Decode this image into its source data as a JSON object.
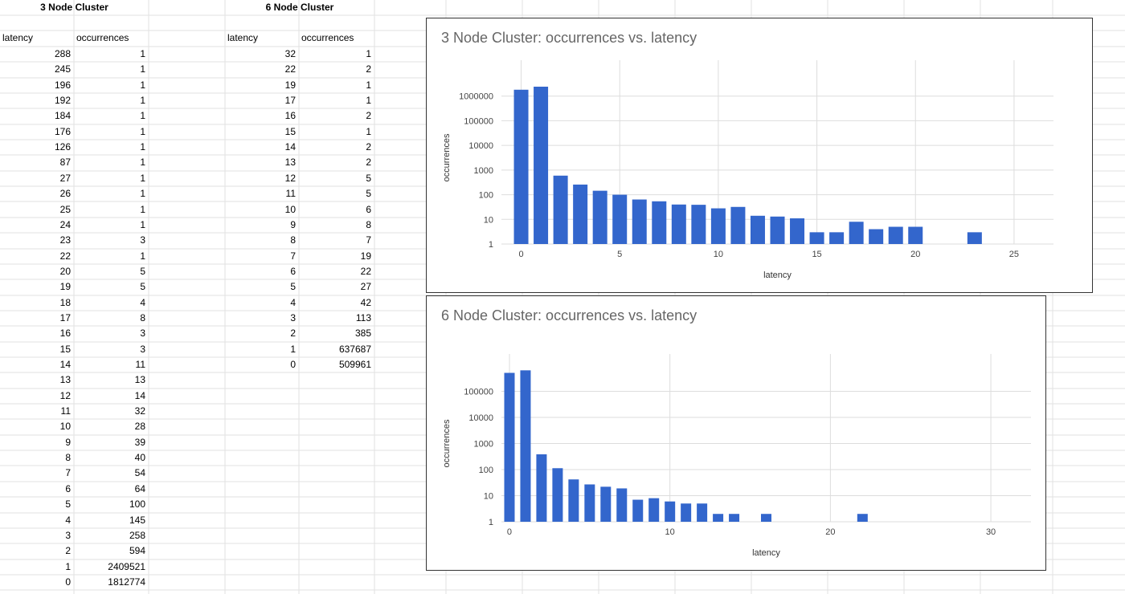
{
  "sheet": {
    "three_node": {
      "title": "3 Node Cluster",
      "col_latency": "latency",
      "col_occurrences": "occurrences",
      "rows": [
        [
          "288",
          "1"
        ],
        [
          "245",
          "1"
        ],
        [
          "196",
          "1"
        ],
        [
          "192",
          "1"
        ],
        [
          "184",
          "1"
        ],
        [
          "176",
          "1"
        ],
        [
          "126",
          "1"
        ],
        [
          "87",
          "1"
        ],
        [
          "27",
          "1"
        ],
        [
          "26",
          "1"
        ],
        [
          "25",
          "1"
        ],
        [
          "24",
          "1"
        ],
        [
          "23",
          "3"
        ],
        [
          "22",
          "1"
        ],
        [
          "20",
          "5"
        ],
        [
          "19",
          "5"
        ],
        [
          "18",
          "4"
        ],
        [
          "17",
          "8"
        ],
        [
          "16",
          "3"
        ],
        [
          "15",
          "3"
        ],
        [
          "14",
          "11"
        ],
        [
          "13",
          "13"
        ],
        [
          "12",
          "14"
        ],
        [
          "11",
          "32"
        ],
        [
          "10",
          "28"
        ],
        [
          "9",
          "39"
        ],
        [
          "8",
          "40"
        ],
        [
          "7",
          "54"
        ],
        [
          "6",
          "64"
        ],
        [
          "5",
          "100"
        ],
        [
          "4",
          "145"
        ],
        [
          "3",
          "258"
        ],
        [
          "2",
          "594"
        ],
        [
          "1",
          "2409521"
        ],
        [
          "0",
          "1812774"
        ]
      ]
    },
    "six_node": {
      "title": "6 Node Cluster",
      "col_latency": "latency",
      "col_occurrences": "occurrences",
      "rows": [
        [
          "32",
          "1"
        ],
        [
          "22",
          "2"
        ],
        [
          "19",
          "1"
        ],
        [
          "17",
          "1"
        ],
        [
          "16",
          "2"
        ],
        [
          "15",
          "1"
        ],
        [
          "14",
          "2"
        ],
        [
          "13",
          "2"
        ],
        [
          "12",
          "5"
        ],
        [
          "11",
          "5"
        ],
        [
          "10",
          "6"
        ],
        [
          "9",
          "8"
        ],
        [
          "8",
          "7"
        ],
        [
          "7",
          "19"
        ],
        [
          "6",
          "22"
        ],
        [
          "5",
          "27"
        ],
        [
          "4",
          "42"
        ],
        [
          "3",
          "113"
        ],
        [
          "2",
          "385"
        ],
        [
          "1",
          "637687"
        ],
        [
          "0",
          "509961"
        ]
      ]
    }
  },
  "colors": {
    "bar": "#3366cc",
    "grid": "#dddddd",
    "title": "#666666"
  },
  "chart_data": [
    {
      "type": "bar",
      "title": "3 Node Cluster: occurrences vs. latency",
      "xlabel": "latency",
      "ylabel": "occurrences",
      "yscale": "log",
      "ylim": [
        1,
        10000000
      ],
      "xlim": [
        -1,
        27
      ],
      "xticks": [
        0,
        5,
        10,
        15,
        20,
        25
      ],
      "yticks": [
        1,
        10,
        100,
        1000,
        10000,
        100000,
        1000000
      ],
      "ytick_labels": [
        "1",
        "10",
        "100",
        "1000",
        "10000",
        "100000",
        "1000000"
      ],
      "points": [
        {
          "x": 0,
          "y": 1812774
        },
        {
          "x": 1,
          "y": 2409521
        },
        {
          "x": 2,
          "y": 594
        },
        {
          "x": 3,
          "y": 258
        },
        {
          "x": 4,
          "y": 145
        },
        {
          "x": 5,
          "y": 100
        },
        {
          "x": 6,
          "y": 64
        },
        {
          "x": 7,
          "y": 54
        },
        {
          "x": 8,
          "y": 40
        },
        {
          "x": 9,
          "y": 39
        },
        {
          "x": 10,
          "y": 28
        },
        {
          "x": 11,
          "y": 32
        },
        {
          "x": 12,
          "y": 14
        },
        {
          "x": 13,
          "y": 13
        },
        {
          "x": 14,
          "y": 11
        },
        {
          "x": 15,
          "y": 3
        },
        {
          "x": 16,
          "y": 3
        },
        {
          "x": 17,
          "y": 8
        },
        {
          "x": 18,
          "y": 4
        },
        {
          "x": 19,
          "y": 5
        },
        {
          "x": 20,
          "y": 5
        },
        {
          "x": 23,
          "y": 3
        }
      ]
    },
    {
      "type": "bar",
      "title": "6 Node Cluster: occurrences vs. latency",
      "xlabel": "latency",
      "ylabel": "occurrences",
      "yscale": "log",
      "ylim": [
        1,
        1000000
      ],
      "xlim": [
        -0.5,
        32.5
      ],
      "xticks": [
        0,
        10,
        20,
        30
      ],
      "yticks": [
        1,
        10,
        100,
        1000,
        10000,
        100000
      ],
      "ytick_labels": [
        "1",
        "10",
        "100",
        "1000",
        "10000",
        "100000"
      ],
      "points": [
        {
          "x": 0,
          "y": 509961
        },
        {
          "x": 1,
          "y": 637687
        },
        {
          "x": 2,
          "y": 385
        },
        {
          "x": 3,
          "y": 113
        },
        {
          "x": 4,
          "y": 42
        },
        {
          "x": 5,
          "y": 27
        },
        {
          "x": 6,
          "y": 22
        },
        {
          "x": 7,
          "y": 19
        },
        {
          "x": 8,
          "y": 7
        },
        {
          "x": 9,
          "y": 8
        },
        {
          "x": 10,
          "y": 6
        },
        {
          "x": 11,
          "y": 5
        },
        {
          "x": 12,
          "y": 5
        },
        {
          "x": 13,
          "y": 2
        },
        {
          "x": 14,
          "y": 2
        },
        {
          "x": 16,
          "y": 2
        },
        {
          "x": 22,
          "y": 2
        }
      ]
    }
  ]
}
